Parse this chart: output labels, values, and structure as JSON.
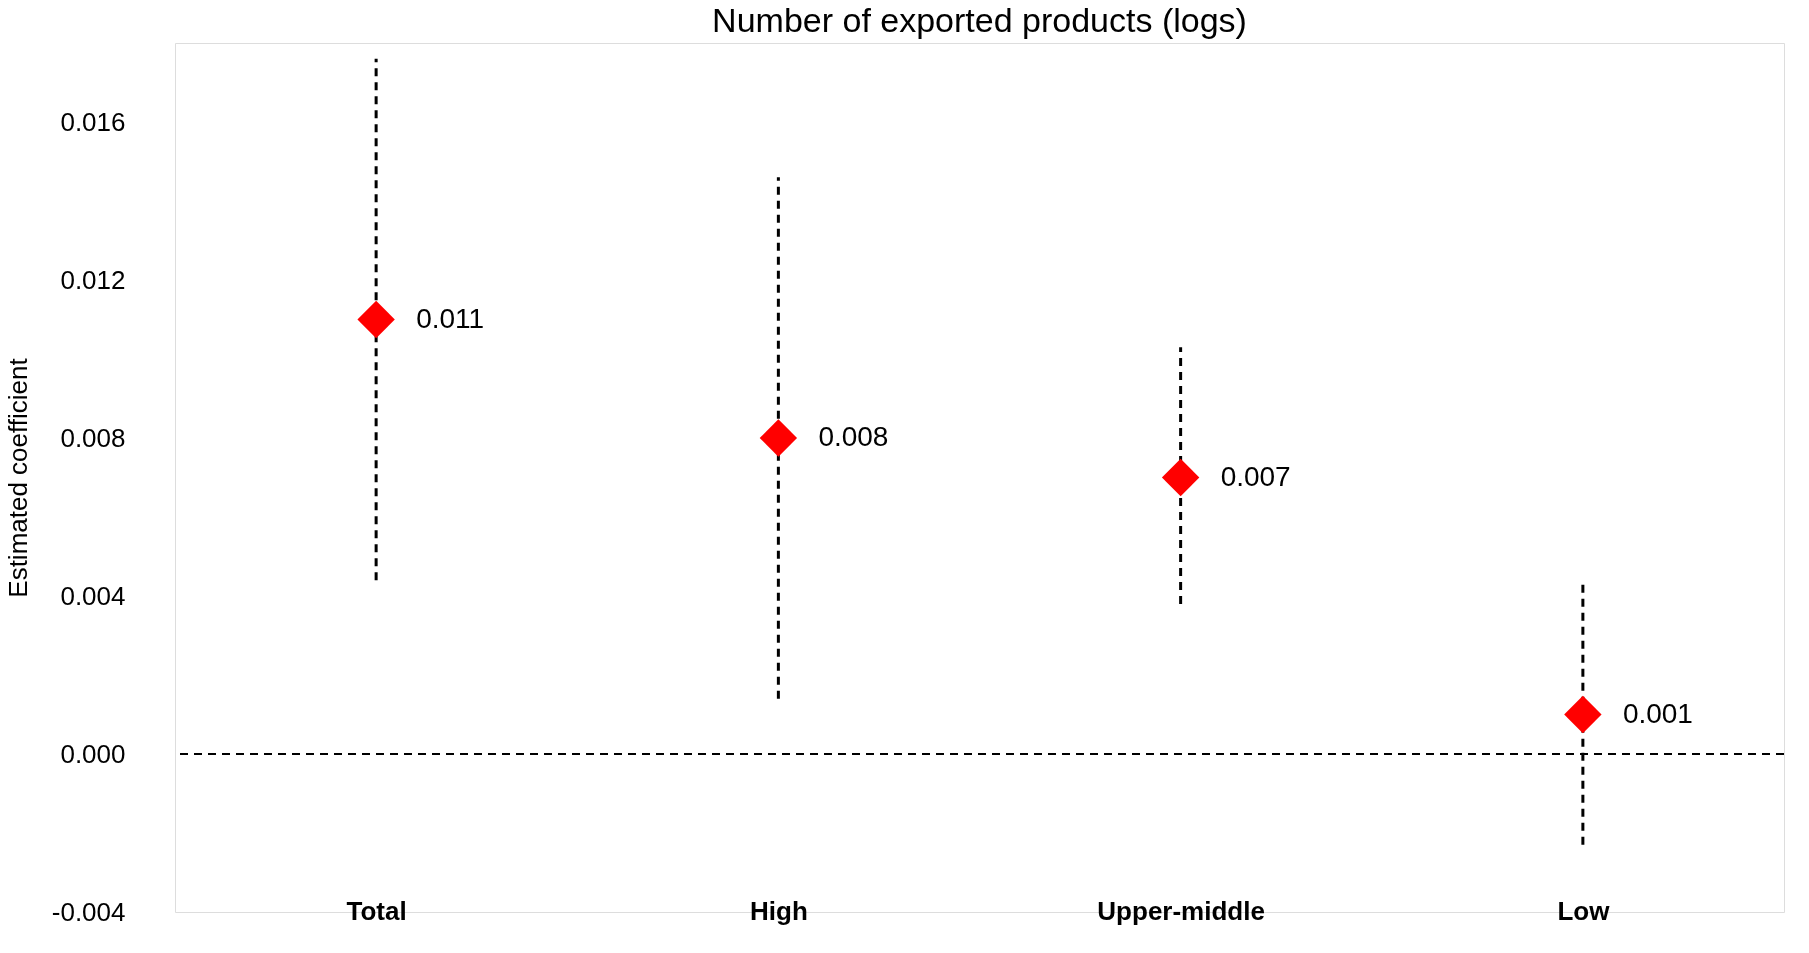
{
  "chart_data": {
    "type": "scatter",
    "title": "Number of exported products (logs)",
    "ylabel": "Estimated coefficient",
    "categories": [
      "Total",
      "High",
      "Upper-middle",
      "Low"
    ],
    "series": [
      {
        "color": "#ff0000",
        "values": [
          0.011,
          0.008,
          0.007,
          0.001
        ],
        "errors": [
          [
            0.0044,
            0.0176
          ],
          [
            0.0014,
            0.0146
          ],
          [
            0.0038,
            0.0103
          ],
          [
            -0.0023,
            0.0043
          ]
        ]
      }
    ],
    "marker": "diamond",
    "line_style": "dashed",
    "data_labels": true,
    "grid": false,
    "legend": false,
    "ylim": [
      -0.004,
      0.018
    ],
    "yticks": [
      {
        "value": -0.004,
        "label": "-0.004"
      },
      {
        "value": 0,
        "label": "0.000"
      },
      {
        "value": 0.004,
        "label": "0.004"
      },
      {
        "value": 0.008,
        "label": "0.008"
      },
      {
        "value": 0.012,
        "label": "0.012"
      },
      {
        "value": 0.016,
        "label": "0.016"
      }
    ],
    "ref_lines": [
      {
        "axis": "y",
        "value": 0,
        "label": null,
        "line_style": "dashed"
      }
    ]
  }
}
